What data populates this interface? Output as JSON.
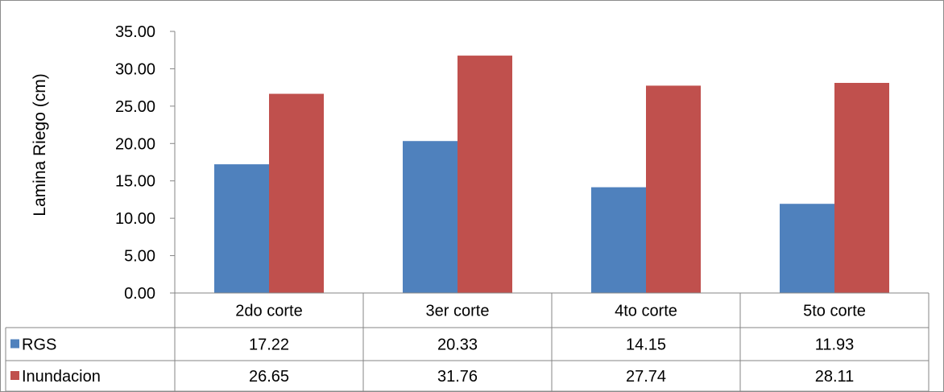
{
  "chart_data": {
    "type": "bar",
    "title": "",
    "xlabel": "",
    "ylabel": "Lamina Riego (cm)",
    "categories": [
      "2do corte",
      "3er corte",
      "4to corte",
      "5to corte"
    ],
    "series": [
      {
        "name": "RGS",
        "color": "#4F81BD",
        "values": [
          17.22,
          20.33,
          14.15,
          11.93
        ],
        "labels": [
          "17.22",
          "20.33",
          "14.15",
          "11.93"
        ]
      },
      {
        "name": "Inundacion",
        "color": "#C0504D",
        "values": [
          26.65,
          31.76,
          27.74,
          28.11
        ],
        "labels": [
          "26.65",
          "31.76",
          "27.74",
          "28.11"
        ]
      }
    ],
    "ylim": [
      0,
      35
    ],
    "yticks": [
      "0.00",
      "5.00",
      "10.00",
      "15.00",
      "20.00",
      "25.00",
      "30.00",
      "35.00"
    ],
    "ytick_values": [
      0,
      5,
      10,
      15,
      20,
      25,
      30,
      35
    ],
    "grid": false,
    "legend": "data-table",
    "data_table": true
  }
}
